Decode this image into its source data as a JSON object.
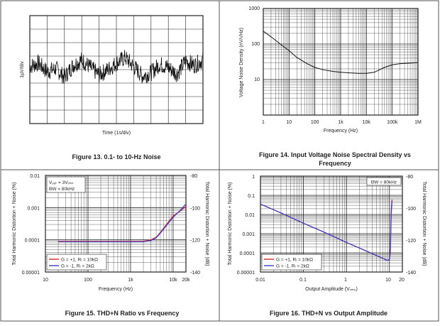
{
  "figures": {
    "fig13": {
      "caption": "Figure 13. 0.1- to 10-Hz Noise",
      "ylabel": "1µV/div",
      "xlabel": "Time (1s/div)"
    },
    "fig14": {
      "caption_line1": "Figure 14. Input Voltage Noise Spectral Density vs",
      "caption_line2": "Frequency",
      "ylabel": "Voltage Noise Density (nV/√Hz)",
      "xlabel": "Frequency (Hz)",
      "yticks": [
        "1000",
        "100",
        "10"
      ],
      "xticks": [
        "1",
        "10",
        "100",
        "1k",
        "10k",
        "100k",
        "1M"
      ]
    },
    "fig15": {
      "caption": "Figure 15. THD+N Ratio vs Frequency",
      "ylabel_left": "Total Harmonic Distortion + Noise (%)",
      "ylabel_right": "Total Harmonic Distortion + Noise (dB)",
      "xlabel": "Frequency (Hz)",
      "yticks_left": [
        "0.01",
        "0.001",
        "0.0001",
        "0.00001"
      ],
      "yticks_right": [
        "-80",
        "-100",
        "-120",
        "-140"
      ],
      "xticks": [
        "10",
        "100",
        "1k",
        "10k",
        "20k"
      ],
      "note_line1": "Vₒᵤₜ = 3Vᵣₘₛ",
      "note_line2": "BW = 80kHz",
      "legend": [
        "G = +1, Rₗ = 10kΩ",
        "G = -1, Rₗ = 2kΩ"
      ]
    },
    "fig16": {
      "caption": "Figure 16. THD+N vs Output Amplitude",
      "ylabel_left": "Total Harmonic Distortion + Noise (%)",
      "ylabel_right": "Total Harmonic Distortion + Noise (dB)",
      "xlabel": "Output Amplitude (Vᵣₘₛ)",
      "yticks_left": [
        "1",
        "0.1",
        "0.01",
        "0.001",
        "0.0001",
        "0.00001"
      ],
      "yticks_right": [
        "-80",
        "-100",
        "-120",
        "-140"
      ],
      "xticks": [
        "0.01",
        "0.1",
        "1",
        "10",
        "20"
      ],
      "note": "BW = 80kHz",
      "legend": [
        "G = +1, Rₗ = 10kΩ",
        "G = -1, Rₗ = 2kΩ"
      ]
    }
  },
  "colors": {
    "series_g_plus1": "#d62728",
    "series_g_minus1": "#3a3acb",
    "border": "#555555"
  },
  "chart_data": [
    {
      "type": "line",
      "title": "Figure 13. 0.1- to 10-Hz Noise",
      "xlabel": "Time (1s/div)",
      "ylabel": "1µV/div",
      "xlim": [
        0,
        10
      ],
      "ylim": [
        -5,
        5
      ],
      "series": [
        {
          "name": "noise",
          "x": [
            0,
            0.5,
            1,
            1.5,
            2,
            2.5,
            3,
            3.5,
            4,
            4.5,
            5,
            5.5,
            6,
            6.5,
            7,
            7.5,
            8,
            8.5,
            9,
            9.5,
            10
          ],
          "y": [
            0.3,
            0.6,
            -0.2,
            0.1,
            -0.7,
            0.4,
            0.9,
            0.2,
            -0.5,
            0.0,
            0.6,
            1.1,
            0.3,
            -0.6,
            -0.3,
            0.5,
            0.2,
            -0.4,
            0.8,
            0.4,
            0.9
          ]
        }
      ]
    },
    {
      "type": "line",
      "title": "Figure 14. Input Voltage Noise Spectral Density vs Frequency",
      "xlabel": "Frequency (Hz)",
      "ylabel": "Voltage Noise Density (nV/√Hz)",
      "xscale": "log",
      "yscale": "log",
      "xlim": [
        1,
        1000000
      ],
      "ylim": [
        1,
        1000
      ],
      "series": [
        {
          "name": "noise density",
          "x": [
            1,
            2,
            5,
            10,
            20,
            50,
            100,
            200,
            500,
            1000,
            2000,
            5000,
            10000,
            20000,
            50000,
            100000,
            200000,
            500000,
            1000000
          ],
          "y": [
            230,
            160,
            95,
            65,
            42,
            28,
            22,
            19,
            17,
            16,
            15.5,
            15,
            15,
            16,
            22,
            26,
            28,
            29,
            30
          ]
        }
      ]
    },
    {
      "type": "line",
      "title": "Figure 15. THD+N Ratio vs Frequency",
      "xlabel": "Frequency (Hz)",
      "ylabel": "Total Harmonic Distortion + Noise (%)",
      "xscale": "log",
      "yscale": "log",
      "xlim": [
        10,
        20000
      ],
      "ylim": [
        1e-05,
        0.01
      ],
      "series": [
        {
          "name": "G = +1, RL = 10kΩ",
          "x": [
            20,
            50,
            100,
            200,
            500,
            1000,
            2000,
            3000,
            4000,
            5000,
            7000,
            10000,
            15000,
            20000
          ],
          "y": [
            9e-05,
            9e-05,
            9e-05,
            9e-05,
            9e-05,
            9e-05,
            9e-05,
            0.0001,
            0.00012,
            0.00017,
            0.0003,
            0.00055,
            0.0008,
            0.0011
          ]
        },
        {
          "name": "G = -1, RL = 2kΩ",
          "x": [
            20,
            50,
            100,
            200,
            500,
            1000,
            2000,
            3000,
            4000,
            5000,
            7000,
            10000,
            15000,
            20000
          ],
          "y": [
            8.75e-05,
            8.75e-05,
            8.75e-05,
            8.75e-05,
            8.75e-05,
            8.75e-05,
            8.75e-05,
            9.5e-05,
            0.000115,
            0.00016,
            0.00028,
            0.0005,
            0.00085,
            0.0013
          ]
        }
      ]
    },
    {
      "type": "line",
      "title": "Figure 16. THD+N vs Output Amplitude",
      "xlabel": "Output Amplitude (VRMS)",
      "ylabel": "Total Harmonic Distortion + Noise (%)",
      "xscale": "log",
      "yscale": "log",
      "xlim": [
        0.01,
        20
      ],
      "ylim": [
        1e-05,
        1
      ],
      "series": [
        {
          "name": "G = +1, RL = 10kΩ",
          "x": [
            0.01,
            0.03,
            0.1,
            0.3,
            1,
            3,
            8,
            9,
            10,
            10.5,
            11,
            11.5
          ],
          "y": [
            0.035,
            0.012,
            0.0035,
            0.0012,
            0.00035,
            0.00012,
            4.5e-05,
            4e-05,
            4.5e-05,
            0.0002,
            0.02,
            0.06
          ]
        },
        {
          "name": "G = -1, RL = 2kΩ",
          "x": [
            0.01,
            0.03,
            0.1,
            0.3,
            1,
            3,
            8,
            9,
            10,
            10.5,
            11,
            11.5
          ],
          "y": [
            0.035,
            0.012,
            0.0035,
            0.0012,
            0.00035,
            0.00012,
            4.5e-05,
            4e-05,
            4.5e-05,
            0.0001,
            0.01,
            0.05
          ]
        }
      ]
    }
  ]
}
